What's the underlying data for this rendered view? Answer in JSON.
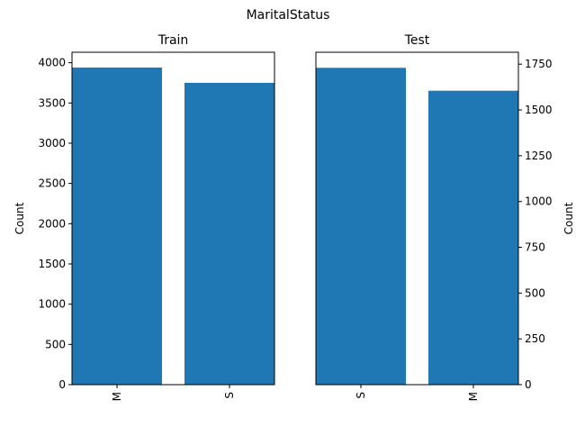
{
  "figure": {
    "suptitle": "MaritalStatus",
    "bar_color": "#1f77b4"
  },
  "chart_data": [
    {
      "type": "bar",
      "title": "Train",
      "xlabel": "",
      "ylabel": "Count",
      "categories": [
        "M",
        "S"
      ],
      "values": [
        3940,
        3750
      ],
      "ylim": [
        0,
        4130
      ],
      "yticks": [
        "0",
        "500",
        "1000",
        "1500",
        "2000",
        "2500",
        "3000",
        "3500",
        "4000"
      ],
      "ytick_values": [
        0,
        500,
        1000,
        1500,
        2000,
        2500,
        3000,
        3500,
        4000
      ],
      "yaxis_side": "left",
      "grid": false
    },
    {
      "type": "bar",
      "title": "Test",
      "xlabel": "",
      "ylabel": "Count",
      "categories": [
        "S",
        "M"
      ],
      "values": [
        1730,
        1605
      ],
      "ylim": [
        0,
        1815
      ],
      "yticks": [
        "0",
        "250",
        "500",
        "750",
        "1000",
        "1250",
        "1500",
        "1750"
      ],
      "ytick_values": [
        0,
        250,
        500,
        750,
        1000,
        1250,
        1500,
        1750
      ],
      "yaxis_side": "right",
      "grid": false
    }
  ]
}
